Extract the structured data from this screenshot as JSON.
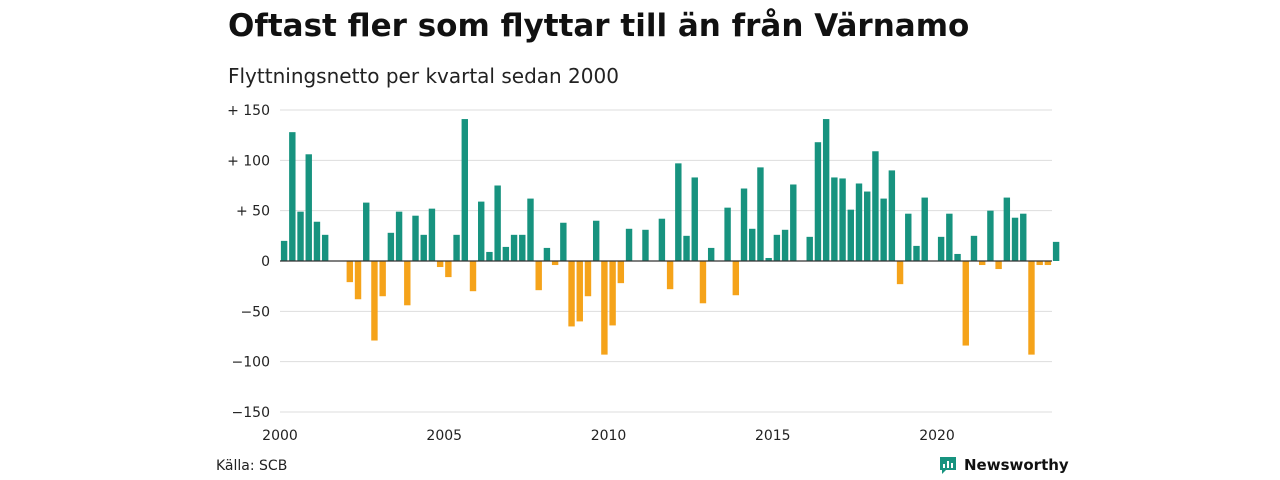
{
  "title": "Oftast fler som flyttar till än från Värnamo",
  "subtitle": "Flyttningsnetto per kvartal sedan 2000",
  "source": "Källa: SCB",
  "brand": {
    "name": "Newsworthy",
    "icon": "newsworthy-logo-icon"
  },
  "colors": {
    "positive": "#17937f",
    "negative": "#f5a31a",
    "grid": "#dddddd",
    "brand": "#17937f"
  },
  "chart_data": {
    "type": "bar",
    "title": "Oftast fler som flyttar till än från Värnamo",
    "subtitle": "Flyttningsnetto per kvartal sedan 2000",
    "xlabel": "",
    "ylabel": "",
    "ylim": [
      -150,
      150
    ],
    "y_ticks": [
      150,
      100,
      50,
      0,
      -50,
      -100,
      -150
    ],
    "y_tick_labels": [
      "+ 150",
      "+ 100",
      "+  50",
      "0",
      "−50",
      "−100",
      "−150"
    ],
    "x_ticks": [
      "2000",
      "2005",
      "2010",
      "2015",
      "2020"
    ],
    "grid": true,
    "legend": "none",
    "categories": [
      "2000K1",
      "2000K2",
      "2000K3",
      "2000K4",
      "2001K1",
      "2001K2",
      "2001K3",
      "2001K4",
      "2002K1",
      "2002K2",
      "2002K3",
      "2002K4",
      "2003K1",
      "2003K2",
      "2003K3",
      "2003K4",
      "2004K1",
      "2004K2",
      "2004K3",
      "2004K4",
      "2005K1",
      "2005K2",
      "2005K3",
      "2005K4",
      "2006K1",
      "2006K2",
      "2006K3",
      "2006K4",
      "2007K1",
      "2007K2",
      "2007K3",
      "2007K4",
      "2008K1",
      "2008K2",
      "2008K3",
      "2008K4",
      "2009K1",
      "2009K2",
      "2009K3",
      "2009K4",
      "2010K1",
      "2010K2",
      "2010K3",
      "2010K4",
      "2011K1",
      "2011K2",
      "2011K3",
      "2011K4",
      "2012K1",
      "2012K2",
      "2012K3",
      "2012K4",
      "2013K1",
      "2013K2",
      "2013K3",
      "2013K4",
      "2014K1",
      "2014K2",
      "2014K3",
      "2014K4",
      "2015K1",
      "2015K2",
      "2015K3",
      "2015K4",
      "2016K1",
      "2016K2",
      "2016K3",
      "2016K4",
      "2017K1",
      "2017K2",
      "2017K3",
      "2017K4",
      "2018K1",
      "2018K2",
      "2018K3",
      "2018K4",
      "2019K1",
      "2019K2",
      "2019K3",
      "2019K4",
      "2020K1",
      "2020K2",
      "2020K3",
      "2020K4",
      "2021K1",
      "2021K2",
      "2021K3",
      "2021K4",
      "2022K1",
      "2022K2",
      "2022K3",
      "2022K4",
      "2023K1",
      "2023K2",
      "2023K3"
    ],
    "values": [
      20,
      128,
      49,
      106,
      39,
      26,
      0,
      0,
      -21,
      -38,
      58,
      -79,
      -35,
      28,
      49,
      -44,
      45,
      26,
      52,
      -6,
      -16,
      26,
      141,
      -30,
      59,
      9,
      75,
      14,
      26,
      26,
      62,
      -29,
      13,
      -4,
      38,
      -65,
      -60,
      -35,
      40,
      -93,
      -64,
      -22,
      32,
      0,
      31,
      0,
      42,
      -28,
      97,
      25,
      83,
      -42,
      13,
      0,
      53,
      -34,
      72,
      32,
      93,
      3,
      26,
      31,
      76,
      0,
      24,
      118,
      141,
      83,
      82,
      51,
      77,
      69,
      109,
      62,
      90,
      -23,
      47,
      15,
      63,
      0,
      24,
      47,
      7,
      -84,
      25,
      -4,
      50,
      -8,
      63,
      43,
      47,
      -93,
      -4,
      -4,
      19
    ]
  }
}
